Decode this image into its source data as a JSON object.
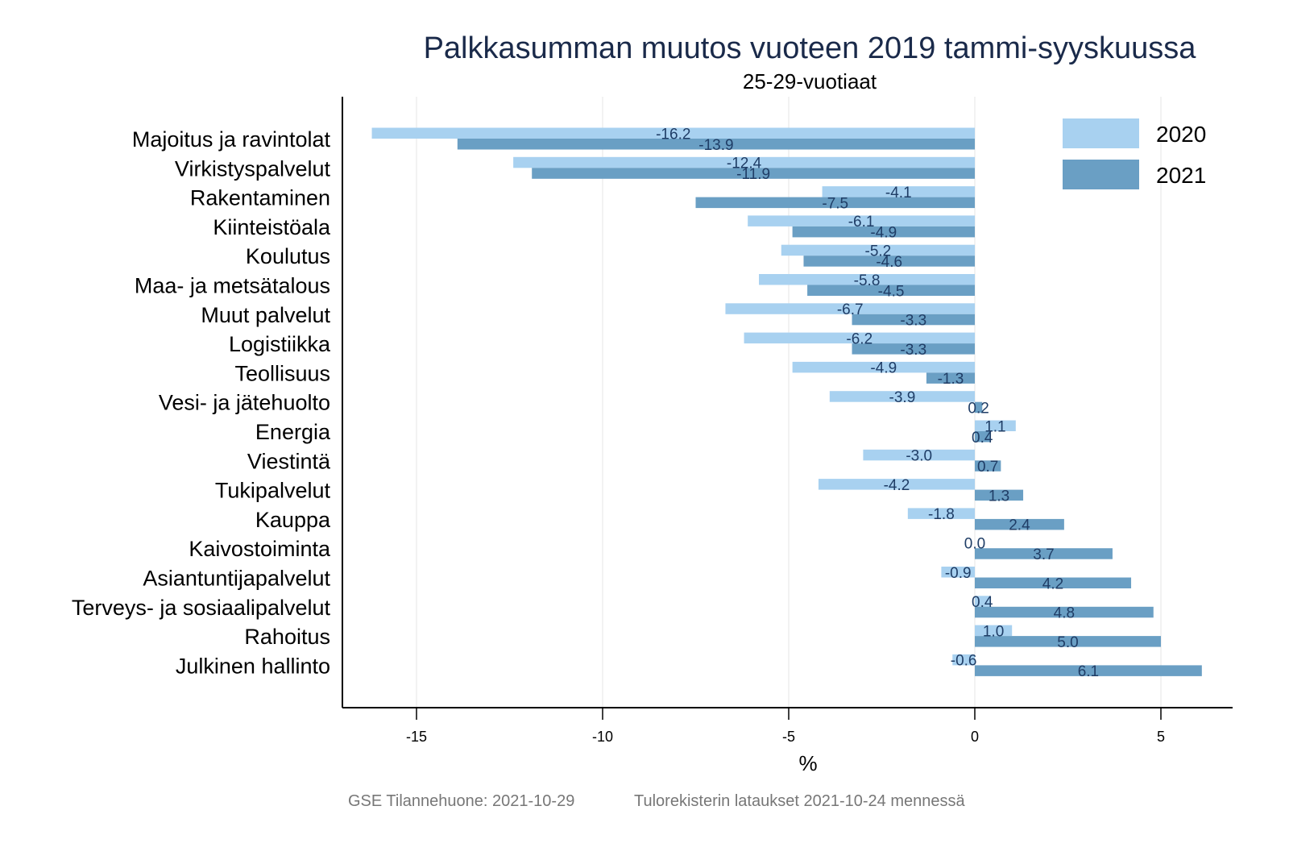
{
  "chart_data": {
    "type": "bar",
    "orientation": "horizontal",
    "title": "Palkkasumman muutos vuoteen 2019 tammi-syyskuussa",
    "subtitle": "25-29-vuotiaat",
    "xlabel": "%",
    "ylabel": "",
    "xlim": [
      -17,
      7
    ],
    "xticks": [
      -15,
      -10,
      -5,
      0,
      5
    ],
    "xtick_labels": [
      "-15",
      "-10",
      "-5",
      "0",
      "5"
    ],
    "grid": true,
    "legend_position": "top-right",
    "categories": [
      "Majoitus ja ravintolat",
      "Virkistyspalvelut",
      "Rakentaminen",
      "Kiinteistöala",
      "Koulutus",
      "Maa- ja metsätalous",
      "Muut palvelut",
      "Logistiikka",
      "Teollisuus",
      "Vesi- ja jätehuolto",
      "Energia",
      "Viestintä",
      "Tukipalvelut",
      "Kauppa",
      "Kaivostoiminta",
      "Asiantuntijapalvelut",
      "Terveys- ja sosiaalipalvelut",
      "Rahoitus",
      "Julkinen hallinto"
    ],
    "series": [
      {
        "name": "2020",
        "color": "#a8d1f0",
        "values": [
          -16.2,
          -12.4,
          -4.1,
          -6.1,
          -5.2,
          -5.8,
          -6.7,
          -6.2,
          -4.9,
          -3.9,
          1.1,
          -3.0,
          -4.2,
          -1.8,
          0.0,
          -0.9,
          0.4,
          1.0,
          -0.6
        ],
        "labels": [
          "-16.2",
          "-12.4",
          "-4.1",
          "-6.1",
          "-5.2",
          "-5.8",
          "-6.7",
          "-6.2",
          "-4.9",
          "-3.9",
          "1.1",
          "-3.0",
          "-4.2",
          "-1.8",
          "0.0",
          "-0.9",
          "0.4",
          "1.0",
          "-0.6"
        ]
      },
      {
        "name": "2021",
        "color": "#6a9fc4",
        "values": [
          -13.9,
          -11.9,
          -7.5,
          -4.9,
          -4.6,
          -4.5,
          -3.3,
          -3.3,
          -1.3,
          0.2,
          0.4,
          0.7,
          1.3,
          2.4,
          3.7,
          4.2,
          4.8,
          5.0,
          6.1
        ],
        "labels": [
          "-13.9",
          "-11.9",
          "-7.5",
          "-4.9",
          "-4.6",
          "-4.5",
          "-3.3",
          "-3.3",
          "-1.3",
          "0.2",
          "0.4",
          "0.7",
          "1.3",
          "2.4",
          "3.7",
          "4.2",
          "4.8",
          "5.0",
          "6.1"
        ]
      }
    ]
  },
  "footer": {
    "source": "GSE Tilannehuone: 2021-10-29",
    "note": "Tulorekisterin lataukset 2021-10-24 mennessä"
  }
}
